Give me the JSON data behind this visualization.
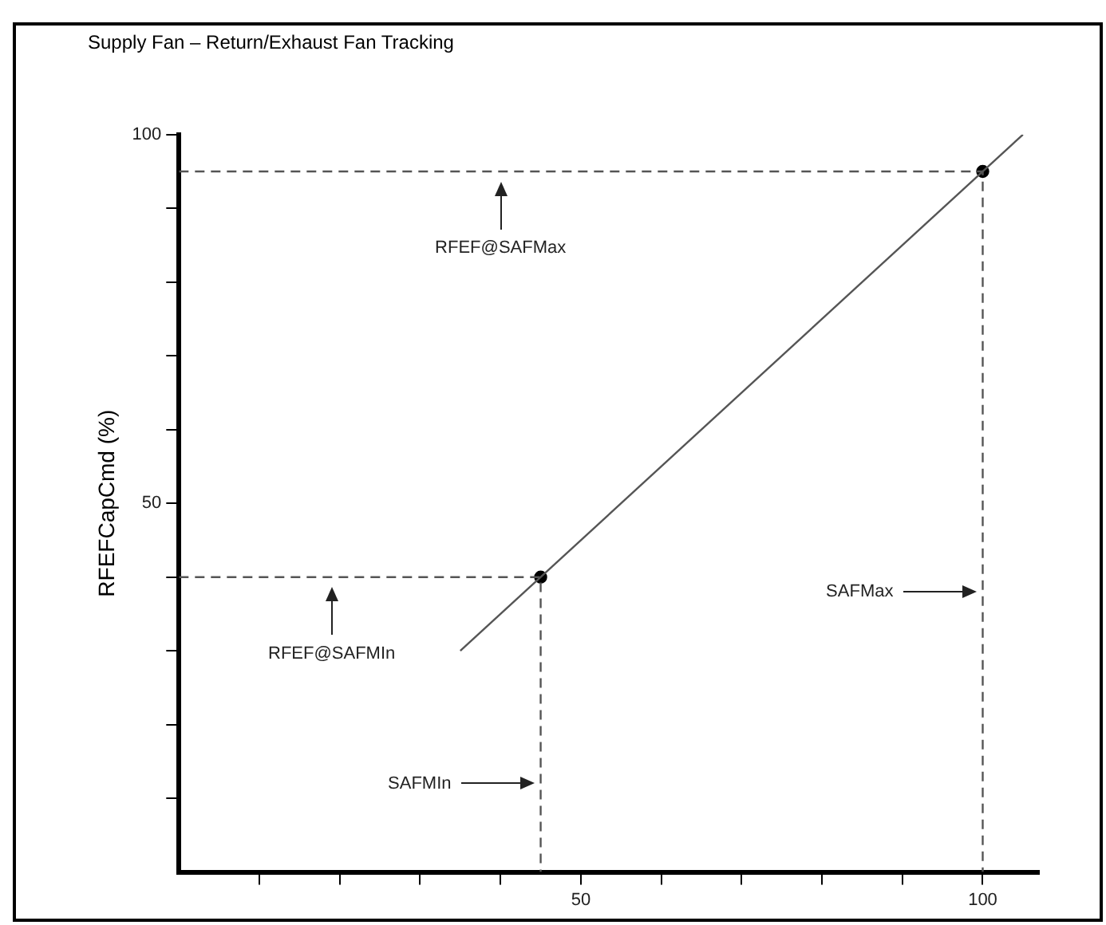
{
  "chart_data": {
    "type": "line",
    "title": "Supply Fan – Return/Exhaust Fan Tracking",
    "ylabel": "RFEFCapCmd (%)",
    "xlim": [
      0,
      107
    ],
    "ylim": [
      0,
      100
    ],
    "xticks": [
      {
        "value": 10,
        "label": null
      },
      {
        "value": 20,
        "label": null
      },
      {
        "value": 30,
        "label": null
      },
      {
        "value": 40,
        "label": null
      },
      50,
      {
        "value": 60,
        "label": null
      },
      {
        "value": 70,
        "label": null
      },
      {
        "value": 80,
        "label": null
      },
      {
        "value": 90,
        "label": null
      },
      100
    ],
    "yticks": [
      {
        "value": 10,
        "label": null
      },
      {
        "value": 20,
        "label": null
      },
      {
        "value": 30,
        "label": null
      },
      {
        "value": 40,
        "label": null
      },
      50,
      {
        "value": 60,
        "label": null
      },
      {
        "value": 70,
        "label": null
      },
      {
        "value": 80,
        "label": null
      },
      {
        "value": 90,
        "label": null
      },
      100
    ],
    "grid": false,
    "legend": false,
    "series": [
      {
        "x": [
          35,
          105
        ],
        "values": [
          30,
          100
        ],
        "color": "#555555",
        "marker": "none",
        "line_style": "solid"
      },
      {
        "x": [
          0,
          45,
          45
        ],
        "values": [
          40,
          40,
          0
        ],
        "color": "#555555",
        "marker": "none",
        "line_style": "dashed"
      },
      {
        "x": [
          0,
          100,
          100
        ],
        "values": [
          95,
          95,
          0
        ],
        "color": "#555555",
        "marker": "none",
        "line_style": "dashed"
      },
      {
        "type": "scatter",
        "x": [
          45,
          100
        ],
        "values": [
          40,
          95
        ],
        "color": "#000000",
        "marker": "circle"
      }
    ],
    "annotations": [
      "RFEF@SAFMax",
      "RFEF@SAFMIn",
      "SAFMIn",
      "SAFMax"
    ]
  }
}
